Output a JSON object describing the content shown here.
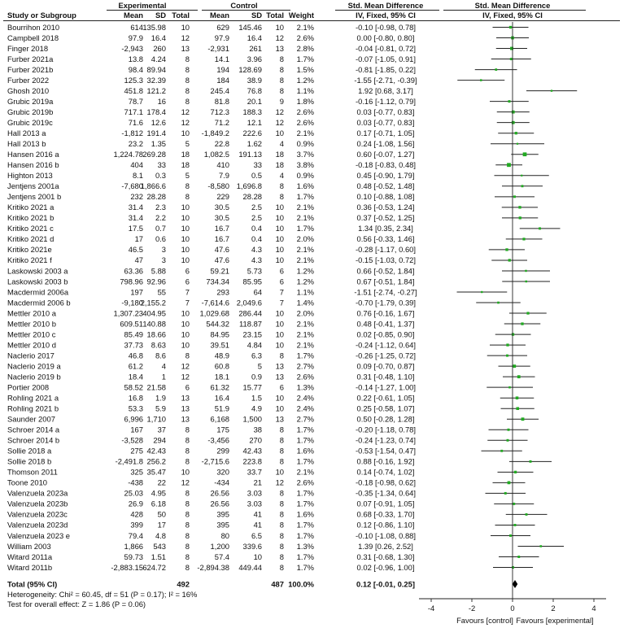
{
  "headers": {
    "study": "Study or Subgroup",
    "experimental": "Experimental",
    "control": "Control",
    "mean": "Mean",
    "sd": "SD",
    "total": "Total",
    "weight": "Weight",
    "effect_col": "Std. Mean Difference",
    "effect_sub": "IV, Fixed, 95% CI",
    "plot_col": "Std. Mean Difference",
    "plot_sub": "IV, Fixed, 95% CI"
  },
  "chart_data": {
    "type": "forest",
    "xlim": [
      -4,
      4
    ],
    "xticks": [
      "-4",
      "-2",
      "0",
      "2",
      "4"
    ],
    "xlabel_left": "Favours [control]",
    "xlabel_right": "Favours [experimental]",
    "colors": {
      "point": "#22aa22",
      "line": "#222222",
      "diamond": "#000000"
    },
    "studies": [
      {
        "name": "Bourrihon 2010",
        "em": "614",
        "esd": "135.98",
        "en": "10",
        "cm": "629",
        "csd": "145.46",
        "cn": "10",
        "w": "2.1%",
        "ci": "-0.10 [-0.98, 0.78]",
        "est": -0.1,
        "lo": -0.98,
        "hi": 0.78
      },
      {
        "name": "Campbell 2018",
        "em": "97.9",
        "esd": "16.4",
        "en": "12",
        "cm": "97.9",
        "csd": "16.4",
        "cn": "12",
        "w": "2.6%",
        "ci": "0.00 [-0.80, 0.80]",
        "est": 0.0,
        "lo": -0.8,
        "hi": 0.8
      },
      {
        "name": "Finger 2018",
        "em": "-2,943",
        "esd": "260",
        "en": "13",
        "cm": "-2,931",
        "csd": "261",
        "cn": "13",
        "w": "2.8%",
        "ci": "-0.04 [-0.81, 0.72]",
        "est": -0.04,
        "lo": -0.81,
        "hi": 0.72
      },
      {
        "name": "Furber 2021a",
        "em": "13.8",
        "esd": "4.24",
        "en": "8",
        "cm": "14.1",
        "csd": "3.96",
        "cn": "8",
        "w": "1.7%",
        "ci": "-0.07 [-1.05, 0.91]",
        "est": -0.07,
        "lo": -1.05,
        "hi": 0.91
      },
      {
        "name": "Furber 2021b",
        "em": "98.4",
        "esd": "89.94",
        "en": "8",
        "cm": "194",
        "csd": "128.69",
        "cn": "8",
        "w": "1.5%",
        "ci": "-0.81 [-1.85, 0.22]",
        "est": -0.81,
        "lo": -1.85,
        "hi": 0.22
      },
      {
        "name": "Furber 2022",
        "em": "125.3",
        "esd": "32.39",
        "en": "8",
        "cm": "184",
        "csd": "38.9",
        "cn": "8",
        "w": "1.2%",
        "ci": "-1.55 [-2.71, -0.39]",
        "est": -1.55,
        "lo": -2.71,
        "hi": -0.39
      },
      {
        "name": "Ghosh 2010",
        "em": "451.8",
        "esd": "121.2",
        "en": "8",
        "cm": "245.4",
        "csd": "76.8",
        "cn": "8",
        "w": "1.1%",
        "ci": "1.92 [0.68, 3.17]",
        "est": 1.92,
        "lo": 0.68,
        "hi": 3.17
      },
      {
        "name": "Grubic 2019a",
        "em": "78.7",
        "esd": "16",
        "en": "8",
        "cm": "81.8",
        "csd": "20.1",
        "cn": "9",
        "w": "1.8%",
        "ci": "-0.16 [-1.12, 0.79]",
        "est": -0.16,
        "lo": -1.12,
        "hi": 0.79
      },
      {
        "name": "Grubic 2019b",
        "em": "717.1",
        "esd": "178.4",
        "en": "12",
        "cm": "712.3",
        "csd": "188.3",
        "cn": "12",
        "w": "2.6%",
        "ci": "0.03 [-0.77, 0.83]",
        "est": 0.03,
        "lo": -0.77,
        "hi": 0.83
      },
      {
        "name": "Grubic 2019c",
        "em": "71.6",
        "esd": "12.6",
        "en": "12",
        "cm": "71.2",
        "csd": "12.1",
        "cn": "12",
        "w": "2.6%",
        "ci": "0.03 [-0.77, 0.83]",
        "est": 0.03,
        "lo": -0.77,
        "hi": 0.83
      },
      {
        "name": "Hall 2013 a",
        "em": "-1,812",
        "esd": "191.4",
        "en": "10",
        "cm": "-1,849.2",
        "csd": "222.6",
        "cn": "10",
        "w": "2.1%",
        "ci": "0.17 [-0.71, 1.05]",
        "est": 0.17,
        "lo": -0.71,
        "hi": 1.05
      },
      {
        "name": "Hall 2013 b",
        "em": "23.2",
        "esd": "1.35",
        "en": "5",
        "cm": "22.8",
        "csd": "1.62",
        "cn": "4",
        "w": "0.9%",
        "ci": "0.24 [-1.08, 1.56]",
        "est": 0.24,
        "lo": -1.08,
        "hi": 1.56
      },
      {
        "name": "Hansen 2016 a",
        "em": "1,224.78",
        "esd": "269.28",
        "en": "18",
        "cm": "1,082.5",
        "csd": "191.13",
        "cn": "18",
        "w": "3.7%",
        "ci": "0.60 [-0.07, 1.27]",
        "est": 0.6,
        "lo": -0.07,
        "hi": 1.27
      },
      {
        "name": "Hansen 2016 b",
        "em": "404",
        "esd": "33",
        "en": "18",
        "cm": "410",
        "csd": "33",
        "cn": "18",
        "w": "3.8%",
        "ci": "-0.18 [-0.83, 0.48]",
        "est": -0.18,
        "lo": -0.83,
        "hi": 0.48
      },
      {
        "name": "Highton 2013",
        "em": "8.1",
        "esd": "0.3",
        "en": "5",
        "cm": "7.9",
        "csd": "0.5",
        "cn": "4",
        "w": "0.9%",
        "ci": "0.45 [-0.90, 1.79]",
        "est": 0.45,
        "lo": -0.9,
        "hi": 1.79
      },
      {
        "name": "Jentjens 2001a",
        "em": "-7,680",
        "esd": "1,866.6",
        "en": "8",
        "cm": "-8,580",
        "csd": "1,696.8",
        "cn": "8",
        "w": "1.6%",
        "ci": "0.48 [-0.52, 1.48]",
        "est": 0.48,
        "lo": -0.52,
        "hi": 1.48
      },
      {
        "name": "Jentjens 2001 b",
        "em": "232",
        "esd": "28.28",
        "en": "8",
        "cm": "229",
        "csd": "28.28",
        "cn": "8",
        "w": "1.7%",
        "ci": "0.10 [-0.88, 1.08]",
        "est": 0.1,
        "lo": -0.88,
        "hi": 1.08
      },
      {
        "name": "Kritiko 2021 a",
        "em": "31.4",
        "esd": "2.3",
        "en": "10",
        "cm": "30.5",
        "csd": "2.5",
        "cn": "10",
        "w": "2.1%",
        "ci": "0.36 [-0.53, 1.24]",
        "est": 0.36,
        "lo": -0.53,
        "hi": 1.24
      },
      {
        "name": "Kritiko 2021 b",
        "em": "31.4",
        "esd": "2.2",
        "en": "10",
        "cm": "30.5",
        "csd": "2.5",
        "cn": "10",
        "w": "2.1%",
        "ci": "0.37 [-0.52, 1.25]",
        "est": 0.37,
        "lo": -0.52,
        "hi": 1.25
      },
      {
        "name": "Kritiko 2021 c",
        "em": "17.5",
        "esd": "0.7",
        "en": "10",
        "cm": "16.7",
        "csd": "0.4",
        "cn": "10",
        "w": "1.7%",
        "ci": "1.34 [0.35, 2.34]",
        "est": 1.34,
        "lo": 0.35,
        "hi": 2.34
      },
      {
        "name": "Kritiko 2021 d",
        "em": "17",
        "esd": "0.6",
        "en": "10",
        "cm": "16.7",
        "csd": "0.4",
        "cn": "10",
        "w": "2.0%",
        "ci": "0.56 [-0.33, 1.46]",
        "est": 0.56,
        "lo": -0.33,
        "hi": 1.46
      },
      {
        "name": "Kritiko 2021e",
        "em": "46.5",
        "esd": "3",
        "en": "10",
        "cm": "47.6",
        "csd": "4.3",
        "cn": "10",
        "w": "2.1%",
        "ci": "-0.28 [-1.17, 0.60]",
        "est": -0.28,
        "lo": -1.17,
        "hi": 0.6
      },
      {
        "name": "Kritiko 2021 f",
        "em": "47",
        "esd": "3",
        "en": "10",
        "cm": "47.6",
        "csd": "4.3",
        "cn": "10",
        "w": "2.1%",
        "ci": "-0.15 [-1.03, 0.72]",
        "est": -0.15,
        "lo": -1.03,
        "hi": 0.72
      },
      {
        "name": "Laskowski 2003 a",
        "em": "63.36",
        "esd": "5.88",
        "en": "6",
        "cm": "59.21",
        "csd": "5.73",
        "cn": "6",
        "w": "1.2%",
        "ci": "0.66 [-0.52, 1.84]",
        "est": 0.66,
        "lo": -0.52,
        "hi": 1.84
      },
      {
        "name": "Laskowski 2003 b",
        "em": "798.96",
        "esd": "92.96",
        "en": "6",
        "cm": "734.34",
        "csd": "85.95",
        "cn": "6",
        "w": "1.2%",
        "ci": "0.67 [-0.51, 1.84]",
        "est": 0.67,
        "lo": -0.51,
        "hi": 1.84
      },
      {
        "name": "Macdermid 2006a",
        "em": "197",
        "esd": "55",
        "en": "7",
        "cm": "293",
        "csd": "64",
        "cn": "7",
        "w": "1.1%",
        "ci": "-1.51 [-2.74, -0.27]",
        "est": -1.51,
        "lo": -2.74,
        "hi": -0.27
      },
      {
        "name": "Macdermid 2006 b",
        "em": "-9,180",
        "esd": "2,155.2",
        "en": "7",
        "cm": "-7,614.6",
        "csd": "2,049.6",
        "cn": "7",
        "w": "1.4%",
        "ci": "-0.70 [-1.79, 0.39]",
        "est": -0.7,
        "lo": -1.79,
        "hi": 0.39
      },
      {
        "name": "Mettler 2010 a",
        "em": "1,307.23",
        "esd": "404.95",
        "en": "10",
        "cm": "1,029.68",
        "csd": "286.44",
        "cn": "10",
        "w": "2.0%",
        "ci": "0.76 [-0.16, 1.67]",
        "est": 0.76,
        "lo": -0.16,
        "hi": 1.67
      },
      {
        "name": "Mettler 2010 b",
        "em": "609.51",
        "esd": "140.88",
        "en": "10",
        "cm": "544.32",
        "csd": "118.87",
        "cn": "10",
        "w": "2.1%",
        "ci": "0.48 [-0.41, 1.37]",
        "est": 0.48,
        "lo": -0.41,
        "hi": 1.37
      },
      {
        "name": "Mettler 2010 c",
        "em": "85.49",
        "esd": "18.66",
        "en": "10",
        "cm": "84.95",
        "csd": "23.15",
        "cn": "10",
        "w": "2.1%",
        "ci": "0.02 [-0.85, 0.90]",
        "est": 0.02,
        "lo": -0.85,
        "hi": 0.9
      },
      {
        "name": "Mettler 2010 d",
        "em": "37.73",
        "esd": "8.63",
        "en": "10",
        "cm": "39.51",
        "csd": "4.84",
        "cn": "10",
        "w": "2.1%",
        "ci": "-0.24 [-1.12, 0.64]",
        "est": -0.24,
        "lo": -1.12,
        "hi": 0.64
      },
      {
        "name": "Naclerio 2017",
        "em": "46.8",
        "esd": "8.6",
        "en": "8",
        "cm": "48.9",
        "csd": "6.3",
        "cn": "8",
        "w": "1.7%",
        "ci": "-0.26 [-1.25, 0.72]",
        "est": -0.26,
        "lo": -1.25,
        "hi": 0.72
      },
      {
        "name": "Naclerio 2019 a",
        "em": "61.2",
        "esd": "4",
        "en": "12",
        "cm": "60.8",
        "csd": "5",
        "cn": "13",
        "w": "2.7%",
        "ci": "0.09 [-0.70, 0.87]",
        "est": 0.09,
        "lo": -0.7,
        "hi": 0.87
      },
      {
        "name": "Naclerio 2019 b",
        "em": "18.4",
        "esd": "1",
        "en": "12",
        "cm": "18.1",
        "csd": "0.9",
        "cn": "13",
        "w": "2.6%",
        "ci": "0.31 [-0.48, 1.10]",
        "est": 0.31,
        "lo": -0.48,
        "hi": 1.1
      },
      {
        "name": "Portier 2008",
        "em": "58.52",
        "esd": "21.58",
        "en": "6",
        "cm": "61.32",
        "csd": "15.77",
        "cn": "6",
        "w": "1.3%",
        "ci": "-0.14 [-1.27, 1.00]",
        "est": -0.14,
        "lo": -1.27,
        "hi": 1.0
      },
      {
        "name": "Rohling 2021 a",
        "em": "16.8",
        "esd": "1.9",
        "en": "13",
        "cm": "16.4",
        "csd": "1.5",
        "cn": "10",
        "w": "2.4%",
        "ci": "0.22 [-0.61, 1.05]",
        "est": 0.22,
        "lo": -0.61,
        "hi": 1.05
      },
      {
        "name": "Rohling 2021 b",
        "em": "53.3",
        "esd": "5.9",
        "en": "13",
        "cm": "51.9",
        "csd": "4.9",
        "cn": "10",
        "w": "2.4%",
        "ci": "0.25 [-0.58, 1.07]",
        "est": 0.25,
        "lo": -0.58,
        "hi": 1.07
      },
      {
        "name": "Saunder 2007",
        "em": "6,996",
        "esd": "1,710",
        "en": "13",
        "cm": "6,168",
        "csd": "1,500",
        "cn": "13",
        "w": "2.7%",
        "ci": "0.50 [-0.28, 1.28]",
        "est": 0.5,
        "lo": -0.28,
        "hi": 1.28
      },
      {
        "name": "Schroer 2014 a",
        "em": "167",
        "esd": "37",
        "en": "8",
        "cm": "175",
        "csd": "38",
        "cn": "8",
        "w": "1.7%",
        "ci": "-0.20 [-1.18, 0.78]",
        "est": -0.2,
        "lo": -1.18,
        "hi": 0.78
      },
      {
        "name": "Schroer 2014 b",
        "em": "-3,528",
        "esd": "294",
        "en": "8",
        "cm": "-3,456",
        "csd": "270",
        "cn": "8",
        "w": "1.7%",
        "ci": "-0.24 [-1.23, 0.74]",
        "est": -0.24,
        "lo": -1.23,
        "hi": 0.74
      },
      {
        "name": "Sollie 2018 a",
        "em": "275",
        "esd": "42.43",
        "en": "8",
        "cm": "299",
        "csd": "42.43",
        "cn": "8",
        "w": "1.6%",
        "ci": "-0.53 [-1.54, 0.47]",
        "est": -0.53,
        "lo": -1.54,
        "hi": 0.47
      },
      {
        "name": "Sollie 2018 b",
        "em": "-2,491.8",
        "esd": "256.2",
        "en": "8",
        "cm": "-2,715.6",
        "csd": "223.8",
        "cn": "8",
        "w": "1.7%",
        "ci": "0.88 [-0.16, 1.92]",
        "est": 0.88,
        "lo": -0.16,
        "hi": 1.92
      },
      {
        "name": "Thomson 2011",
        "em": "325",
        "esd": "35.47",
        "en": "10",
        "cm": "320",
        "csd": "33.7",
        "cn": "10",
        "w": "2.1%",
        "ci": "0.14 [-0.74, 1.02]",
        "est": 0.14,
        "lo": -0.74,
        "hi": 1.02
      },
      {
        "name": "Toone 2010",
        "em": "-438",
        "esd": "22",
        "en": "12",
        "cm": "-434",
        "csd": "21",
        "cn": "12",
        "w": "2.6%",
        "ci": "-0.18 [-0.98, 0.62]",
        "est": -0.18,
        "lo": -0.98,
        "hi": 0.62
      },
      {
        "name": "Valenzuela 2023a",
        "em": "25.03",
        "esd": "4.95",
        "en": "8",
        "cm": "26.56",
        "csd": "3.03",
        "cn": "8",
        "w": "1.7%",
        "ci": "-0.35 [-1.34, 0.64]",
        "est": -0.35,
        "lo": -1.34,
        "hi": 0.64
      },
      {
        "name": "Valenzuela 2023b",
        "em": "26.9",
        "esd": "6.18",
        "en": "8",
        "cm": "26.56",
        "csd": "3.03",
        "cn": "8",
        "w": "1.7%",
        "ci": "0.07 [-0.91, 1.05]",
        "est": 0.07,
        "lo": -0.91,
        "hi": 1.05
      },
      {
        "name": "Valenzuela 2023c",
        "em": "428",
        "esd": "50",
        "en": "8",
        "cm": "395",
        "csd": "41",
        "cn": "8",
        "w": "1.6%",
        "ci": "0.68 [-0.33, 1.70]",
        "est": 0.68,
        "lo": -0.33,
        "hi": 1.7
      },
      {
        "name": "Valenzuela 2023d",
        "em": "399",
        "esd": "17",
        "en": "8",
        "cm": "395",
        "csd": "41",
        "cn": "8",
        "w": "1.7%",
        "ci": "0.12 [-0.86, 1.10]",
        "est": 0.12,
        "lo": -0.86,
        "hi": 1.1
      },
      {
        "name": "Valenzuela 2023 e",
        "em": "79.4",
        "esd": "4.8",
        "en": "8",
        "cm": "80",
        "csd": "6.5",
        "cn": "8",
        "w": "1.7%",
        "ci": "-0.10 [-1.08, 0.88]",
        "est": -0.1,
        "lo": -1.08,
        "hi": 0.88
      },
      {
        "name": "William 2003",
        "em": "1,866",
        "esd": "543",
        "en": "8",
        "cm": "1,200",
        "csd": "339.6",
        "cn": "8",
        "w": "1.3%",
        "ci": "1.39 [0.26, 2.52]",
        "est": 1.39,
        "lo": 0.26,
        "hi": 2.52
      },
      {
        "name": "Witard 2011a",
        "em": "59.73",
        "esd": "1.51",
        "en": "8",
        "cm": "57.4",
        "csd": "10",
        "cn": "8",
        "w": "1.7%",
        "ci": "0.31 [-0.68, 1.30]",
        "est": 0.31,
        "lo": -0.68,
        "hi": 1.3
      },
      {
        "name": "Witard 2011b",
        "em": "-2,883.15",
        "esd": "624.72",
        "en": "8",
        "cm": "-2,894.38",
        "csd": "449.44",
        "cn": "8",
        "w": "1.7%",
        "ci": "0.02 [-0.96, 1.00]",
        "est": 0.02,
        "lo": -0.96,
        "hi": 1.0
      }
    ],
    "total": {
      "name": "Total (95% CI)",
      "en": "492",
      "cn": "487",
      "w": "100.0%",
      "ci": "0.12 [-0.01, 0.25]",
      "est": 0.12,
      "lo": -0.01,
      "hi": 0.25
    },
    "heterogeneity": "Heterogeneity: Chi² = 60.45, df = 51 (P = 0.17); I² = 16%",
    "overall_test": "Test for overall effect: Z = 1.86 (P = 0.06)"
  }
}
